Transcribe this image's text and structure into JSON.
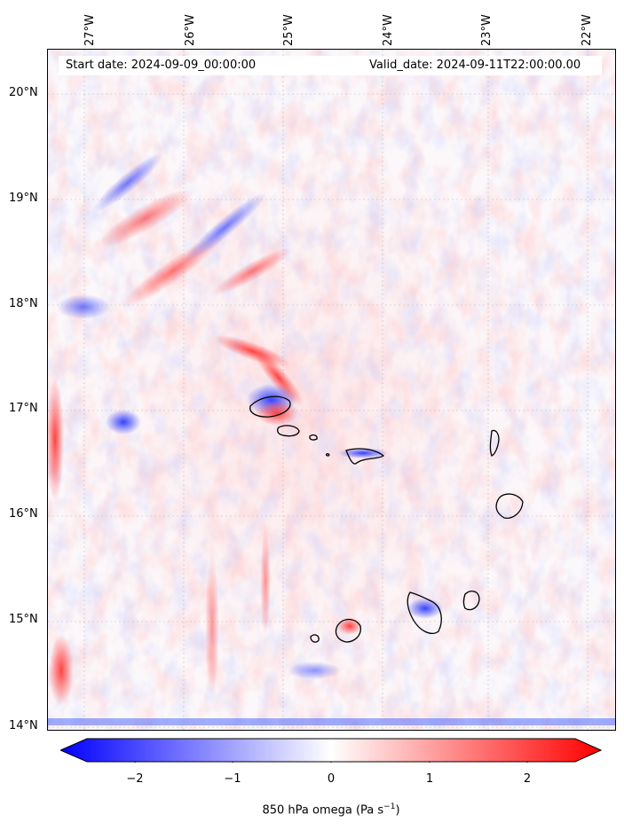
{
  "map": {
    "start_date": "Start date: 2024-09-09_00:00:00",
    "valid_date": "Valid_date: 2024-09-11T22:00:00.00",
    "lon_labels": [
      "27°W",
      "26°W",
      "25°W",
      "24°W",
      "23°W",
      "22°W"
    ],
    "lat_labels": [
      "20°N",
      "19°N",
      "18°N",
      "17°N",
      "16°N",
      "15°N",
      "14°N"
    ],
    "colorbar": {
      "label_main": "850 hPa omega (Pa s",
      "label_sup": "−1",
      "label_end": ")",
      "ticks": [
        "−2",
        "−1",
        "0",
        "1",
        "2"
      ],
      "min_color": "#0000ff",
      "mid_color": "#ffffff",
      "max_color": "#ff0000"
    }
  }
}
